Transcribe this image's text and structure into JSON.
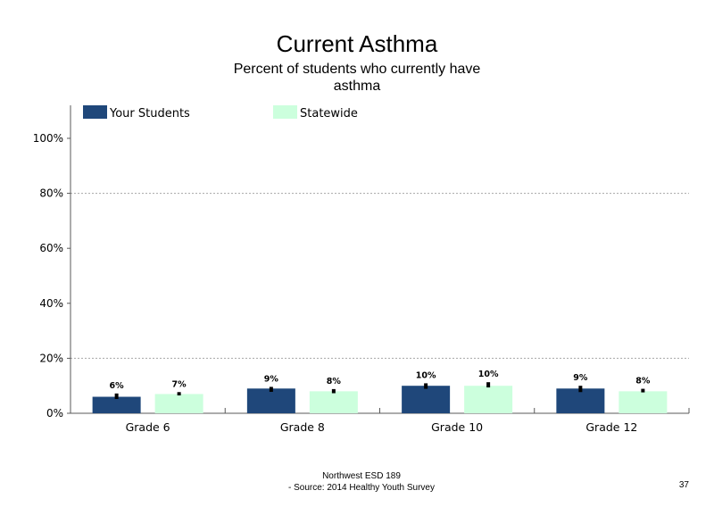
{
  "title": "Current Asthma",
  "subtitle": "Percent of students who currently have asthma",
  "footer": {
    "line1": "Northwest ESD  189",
    "line2": "- Source: 2014 Healthy  Youth Survey"
  },
  "page_number": "37",
  "colors": {
    "your_students": "#1f477a",
    "statewide": "#ccffdd",
    "error_bar": "#000000",
    "gridline": "#a6a6a6",
    "axis": "#595959"
  },
  "chart_data": {
    "type": "bar",
    "title": "Current Asthma",
    "subtitle": "Percent of students who currently have asthma",
    "categories": [
      "Grade 6",
      "Grade 8",
      "Grade 10",
      "Grade 12"
    ],
    "series": [
      {
        "name": "Your Students",
        "values": [
          6,
          9,
          10,
          9
        ],
        "labels": [
          "6%",
          "9%",
          "10%",
          "9%"
        ],
        "error_low": [
          5.2,
          7.8,
          8.9,
          7.7
        ],
        "error_high": [
          7.2,
          9.6,
          10.9,
          10.0
        ]
      },
      {
        "name": "Statewide",
        "values": [
          7,
          8,
          10,
          8
        ],
        "labels": [
          "7%",
          "8%",
          "10%",
          "8%"
        ],
        "error_low": [
          6.5,
          7.3,
          9.4,
          7.6
        ],
        "error_high": [
          7.7,
          8.8,
          11.3,
          8.9
        ]
      }
    ],
    "yticks": [
      0,
      20,
      40,
      60,
      80,
      100
    ],
    "ytick_labels": [
      "0%",
      "20%",
      "40%",
      "60%",
      "80%",
      "100%"
    ],
    "ylim": [
      0,
      112
    ],
    "gridlines": [
      20,
      80
    ],
    "legend_position": "top-left",
    "xlabel": "",
    "ylabel": ""
  }
}
